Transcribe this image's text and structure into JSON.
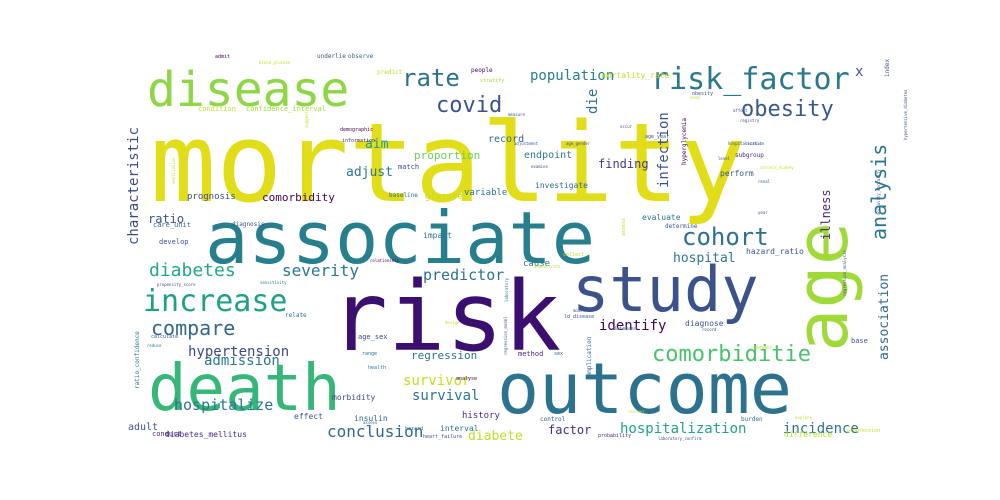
{
  "words": [
    {
      "text": "mortality",
      "color": "#e1dd18"
    },
    {
      "text": "associate",
      "color": "#277f8e"
    },
    {
      "text": "risk",
      "color": "#3b0f70"
    },
    {
      "text": "death",
      "color": "#35b779"
    },
    {
      "text": "outcome",
      "color": "#2c728e"
    },
    {
      "text": "study",
      "color": "#3b528b"
    },
    {
      "text": "age",
      "color": "#a0da39"
    },
    {
      "text": "disease",
      "color": "#8ed645"
    },
    {
      "text": "risk_factor",
      "color": "#2a788e"
    },
    {
      "text": "increase",
      "color": "#1fa187"
    },
    {
      "text": "cohort",
      "color": "#2c728e"
    },
    {
      "text": "obesity",
      "color": "#38598c"
    },
    {
      "text": "rate",
      "color": "#2c728e"
    },
    {
      "text": "covid",
      "color": "#3b528b"
    },
    {
      "text": "comorbiditie",
      "color": "#4ac16d"
    },
    {
      "text": "compare",
      "color": "#31688e"
    },
    {
      "text": "analysis",
      "color": "#2a788e"
    },
    {
      "text": "diabetes",
      "color": "#22a884"
    },
    {
      "text": "severity",
      "color": "#2a788e"
    },
    {
      "text": "population",
      "color": "#277f8e"
    },
    {
      "text": "predictor",
      "color": "#2c728e"
    },
    {
      "text": "identify",
      "color": "#440154"
    },
    {
      "text": "admission",
      "color": "#2a788e"
    },
    {
      "text": "hypertension",
      "color": "#3e4989"
    },
    {
      "text": "hospitalize",
      "color": "#2a788e"
    },
    {
      "text": "conclusion",
      "color": "#31688e"
    },
    {
      "text": "hospitalization",
      "color": "#20a386"
    },
    {
      "text": "survivor",
      "color": "#c2df23"
    },
    {
      "text": "survival",
      "color": "#2a788e"
    },
    {
      "text": "incidence",
      "color": "#2c728e"
    },
    {
      "text": "association",
      "color": "#31688e"
    },
    {
      "text": "diabete",
      "color": "#bddf26"
    },
    {
      "text": "factor",
      "color": "#472d7b"
    },
    {
      "text": "hospital",
      "color": "#2a788e"
    },
    {
      "text": "infection",
      "color": "#3b528b"
    },
    {
      "text": "characteristic",
      "color": "#3e4989"
    },
    {
      "text": "die",
      "color": "#2c728e"
    },
    {
      "text": "illness",
      "color": "#482878"
    },
    {
      "text": "aim",
      "color": "#1f9e89"
    },
    {
      "text": "adjust",
      "color": "#2a788e"
    },
    {
      "text": "ratio",
      "color": "#3b528b"
    },
    {
      "text": "finding",
      "color": "#443983"
    },
    {
      "text": "regression",
      "color": "#2c728e"
    },
    {
      "text": "comorbidity",
      "color": "#440154"
    },
    {
      "text": "adult",
      "color": "#3b528b"
    },
    {
      "text": "diabetes_mellitus",
      "color": "#472d7b"
    },
    {
      "text": "record",
      "color": "#31688e"
    },
    {
      "text": "proportion",
      "color": "#6ccd5a"
    },
    {
      "text": "endpoint",
      "color": "#2a788e"
    },
    {
      "text": "prognosis",
      "color": "#3e4989"
    },
    {
      "text": "glucose",
      "color": "#bddf26"
    },
    {
      "text": "variable",
      "color": "#2c728e"
    },
    {
      "text": "investigate",
      "color": "#31688e"
    },
    {
      "text": "evaluate",
      "color": "#2a788e"
    },
    {
      "text": "perform",
      "color": "#3b528b"
    },
    {
      "text": "subgroup",
      "color": "#482878"
    },
    {
      "text": "hazard_ratio",
      "color": "#3b528b"
    },
    {
      "text": "diagnose",
      "color": "#3b528b"
    },
    {
      "text": "cause",
      "color": "#2c728e"
    },
    {
      "text": "history",
      "color": "#472d7b"
    },
    {
      "text": "morbidity",
      "color": "#3e4989"
    },
    {
      "text": "insulin",
      "color": "#31688e"
    },
    {
      "text": "interval",
      "color": "#2a788e"
    },
    {
      "text": "effect",
      "color": "#3b528b"
    },
    {
      "text": "impact",
      "color": "#2c728e"
    },
    {
      "text": "method",
      "color": "#482878"
    },
    {
      "text": "base",
      "color": "#3b528b"
    },
    {
      "text": "complication",
      "color": "#31688e"
    },
    {
      "text": "analyse",
      "color": "#440154"
    },
    {
      "text": "control",
      "color": "#3b528b"
    },
    {
      "text": "difference",
      "color": "#b5de2b"
    },
    {
      "text": "probability",
      "color": "#472d7b"
    },
    {
      "text": "laboratory_confirm",
      "color": "#3b528b"
    },
    {
      "text": "confidence_interval",
      "color": "#a0da39"
    },
    {
      "text": "ratio_confidence",
      "color": "#2c728e"
    },
    {
      "text": "care_unit",
      "color": "#31688e"
    },
    {
      "text": "develop",
      "color": "#3b528b"
    },
    {
      "text": "diagnosis",
      "color": "#3b528b"
    },
    {
      "text": "demographic",
      "color": "#440154"
    },
    {
      "text": "baseline",
      "color": "#2c728e"
    },
    {
      "text": "match",
      "color": "#3e4989"
    },
    {
      "text": "information",
      "color": "#482878"
    },
    {
      "text": "admit",
      "color": "#440154"
    },
    {
      "text": "underlie",
      "color": "#3b528b"
    },
    {
      "text": "observe",
      "color": "#31688e"
    },
    {
      "text": "people",
      "color": "#440154"
    },
    {
      "text": "predict",
      "color": "#bddf26"
    },
    {
      "text": "stratify",
      "color": "#a0da39"
    },
    {
      "text": "mortality_rate",
      "color": "#bddf26"
    },
    {
      "text": "age_year",
      "color": "#3b528b"
    },
    {
      "text": "obesity",
      "color": "#3b528b"
    },
    {
      "text": "condition",
      "color": "#bddf26"
    },
    {
      "text": "registry",
      "color": "#3b528b"
    },
    {
      "text": "calculate",
      "color": "#3b528b"
    },
    {
      "text": "reduce",
      "color": "#2c728e"
    },
    {
      "text": "range",
      "color": "#2c728e"
    },
    {
      "text": "assess",
      "color": "#3b528b"
    },
    {
      "text": "burden",
      "color": "#2c728e"
    },
    {
      "text": "conduct",
      "color": "#482878"
    },
    {
      "text": "progression",
      "color": "#bddf26"
    },
    {
      "text": "database",
      "color": "#2c728e"
    },
    {
      "text": "gender",
      "color": "#bddf26"
    },
    {
      "text": "age_sex",
      "color": "#3e4989"
    },
    {
      "text": "relate",
      "color": "#2c728e"
    },
    {
      "text": "determine",
      "color": "#3b528b"
    },
    {
      "text": "health",
      "color": "#2a788e"
    },
    {
      "text": "hazard",
      "color": "#2c728e"
    },
    {
      "text": "heart_failure",
      "color": "#3b528b"
    },
    {
      "text": "blood_glucose",
      "color": "#bddf26"
    },
    {
      "text": "hyperglycemia",
      "color": "#440154"
    },
    {
      "text": "adjustment",
      "color": "#3b528b"
    },
    {
      "text": "measure",
      "color": "#3b528b"
    },
    {
      "text": "examine",
      "color": "#3b528b"
    },
    {
      "text": "collect",
      "color": "#bddf26"
    },
    {
      "text": "relationship",
      "color": "#440154"
    },
    {
      "text": "explore",
      "color": "#bddf26"
    },
    {
      "text": "propensity_score",
      "color": "#3b528b"
    },
    {
      "text": "sensitivity",
      "color": "#2c728e"
    },
    {
      "text": "ventilation",
      "color": "#bddf26"
    },
    {
      "text": "regression_model",
      "color": "#3b528b"
    },
    {
      "text": "laboratory",
      "color": "#2c728e"
    },
    {
      "text": "hospitalization",
      "color": "#3b528b"
    },
    {
      "text": "regression_analysis",
      "color": "#3b528b"
    },
    {
      "text": "hypertensive_diabetes",
      "color": "#3b528b"
    },
    {
      "text": "mortality_mortality",
      "color": "#3b528b"
    },
    {
      "text": "design",
      "color": "#bddf26"
    },
    {
      "text": "sex",
      "color": "#3b528b"
    },
    {
      "text": "ld_disease",
      "color": "#3b528b"
    },
    {
      "text": "assess",
      "color": "#bddf26"
    },
    {
      "text": "year",
      "color": "#3b528b"
    },
    {
      "text": "chronic_kidney",
      "color": "#bddf26"
    },
    {
      "text": "affect",
      "color": "#3b528b"
    },
    {
      "text": "suggest",
      "color": "#bddf26"
    },
    {
      "text": "need",
      "color": "#bddf26"
    },
    {
      "text": "index",
      "color": "#3b528b"
    },
    {
      "text": "recruit",
      "color": "#3b528b"
    },
    {
      "text": "renal",
      "color": "#3b528b"
    },
    {
      "text": "demonstrate",
      "color": "#bddf26"
    },
    {
      "text": "model",
      "color": "#3b528b"
    },
    {
      "text": "level",
      "color": "#3b528b"
    },
    {
      "text": "occur",
      "color": "#3b528b"
    },
    {
      "text": "age_gender",
      "color": "#3b528b"
    },
    {
      "text": "record",
      "color": "#3b528b"
    },
    {
      "text": "x",
      "color": "#3b528b"
    },
    {
      "text": "recover",
      "color": "#bddf26"
    }
  ]
}
